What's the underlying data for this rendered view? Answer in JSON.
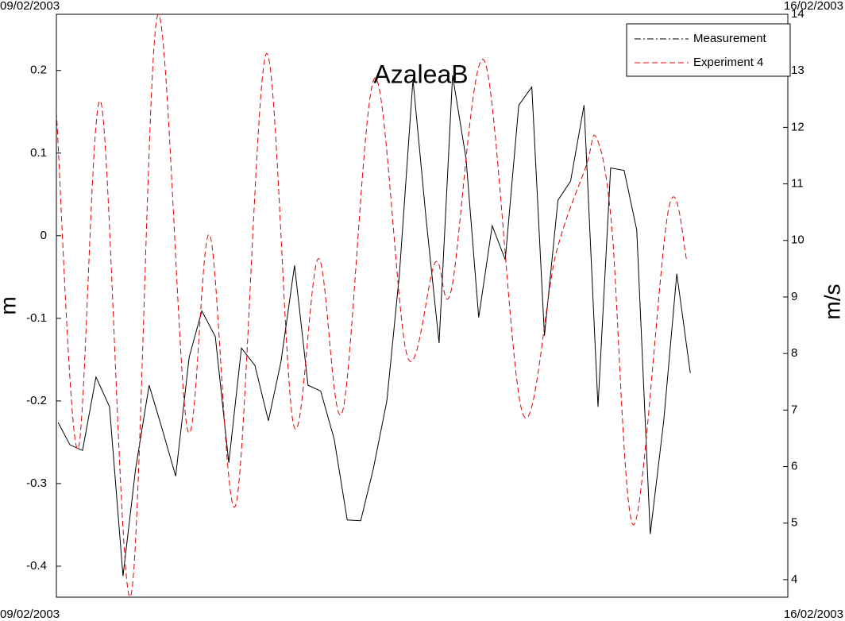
{
  "chart_data": {
    "type": "line",
    "title": "AzaleaB",
    "y_label": "m",
    "y2_label": "m/s",
    "xlim": [
      0,
      168
    ],
    "xticks": [
      {
        "value": 0,
        "label": "09/02/2003"
      },
      {
        "value": 168,
        "label": "16/02/2003"
      }
    ],
    "ylim": [
      -0.4375,
      0.268
    ],
    "yticks": [
      -0.4,
      -0.3,
      -0.2,
      -0.1,
      0,
      0.1,
      0.2
    ],
    "y2lim": [
      3.69,
      14
    ],
    "y2ticks": [
      4,
      5,
      6,
      7,
      8,
      9,
      10,
      11,
      12,
      13,
      14
    ],
    "legend": "upper right",
    "series": [
      {
        "name": "Measurement",
        "color": "#000000",
        "style": "dashdot",
        "x": [
          0.4,
          3.1,
          6.0,
          9.1,
          12.2,
          15.3,
          18.2,
          21.3,
          24.3,
          27.4,
          30.5,
          33.4,
          36.5,
          39.6,
          42.5,
          45.6,
          48.7,
          51.6,
          54.7,
          57.8,
          60.7,
          63.8,
          66.8,
          69.9,
          72.8,
          75.9,
          78.8,
          81.9,
          85.0,
          87.9,
          91.0,
          94.1,
          97.0,
          100.1,
          103.1,
          106.2,
          109.2,
          112.1,
          115.2,
          118.1,
          121.2,
          124.4,
          127.3,
          130.4,
          133.3,
          136.4,
          139.5,
          142.5,
          145.6
        ],
        "values": [
          -0.226,
          -0.253,
          -0.26,
          -0.171,
          -0.207,
          -0.412,
          -0.282,
          -0.181,
          -0.234,
          -0.291,
          -0.147,
          -0.091,
          -0.122,
          -0.275,
          -0.136,
          -0.157,
          -0.224,
          -0.152,
          -0.036,
          -0.181,
          -0.188,
          -0.246,
          -0.344,
          -0.345,
          -0.282,
          -0.2,
          -0.046,
          0.189,
          0.016,
          -0.13,
          0.194,
          0.093,
          -0.099,
          0.012,
          -0.029,
          0.158,
          0.18,
          -0.121,
          0.043,
          0.066,
          0.158,
          -0.207,
          0.082,
          0.079,
          0.007,
          -0.361,
          -0.224,
          -0.046,
          -0.166
        ]
      },
      {
        "name": "Experiment 4",
        "color": "#e00000",
        "style": "dashed",
        "axis": "y2",
        "x": [
          0,
          4.9,
          10.2,
          17.0,
          23.2,
          30.1,
          35.2,
          41.2,
          48.2,
          54.5,
          60.2,
          65.7,
          73.1,
          80.6,
          87.0,
          90.7,
          98.3,
          107.1,
          114.7,
          121.6,
          124.0,
          127.5,
          132.6,
          140.6,
          144.8
        ],
        "values": [
          12.28,
          6.31,
          12.45,
          3.7,
          13.97,
          6.66,
          10.1,
          5.32,
          13.3,
          6.73,
          9.68,
          6.97,
          12.87,
          7.95,
          9.61,
          9.12,
          13.18,
          6.94,
          9.75,
          11.3,
          11.82,
          10.3,
          4.97,
          10.55,
          9.65
        ]
      }
    ]
  }
}
